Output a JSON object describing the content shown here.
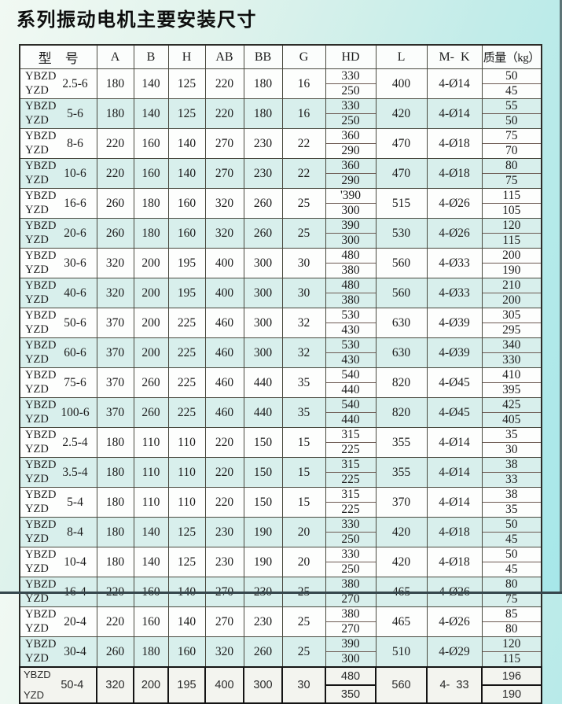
{
  "title": "系列振动电机主要安装尺寸",
  "style": {
    "background_top_left": "#f1f9f3",
    "background_bottom_right": "#a6e7e9",
    "row_tint": "#d8efec",
    "row_plain": "#fdfefd",
    "grid_line": "#49493f",
    "text": "#1b1b1b"
  },
  "table": {
    "headers": [
      "型　号",
      "A",
      "B",
      "H",
      "AB",
      "BB",
      "G",
      "HD",
      "L",
      "M-  K",
      "质量（kg）"
    ],
    "rows": [
      {
        "model_lines": [
          "YBZD",
          "YZD"
        ],
        "size": "2.5-6",
        "A": "180",
        "B": "140",
        "H": "125",
        "AB": "220",
        "BB": "180",
        "G": "16",
        "HD": [
          "330",
          "250"
        ],
        "L": "400",
        "MK": "4-Ø14",
        "kg": [
          "50",
          "45"
        ],
        "special": false
      },
      {
        "model_lines": [
          "YBZD",
          "YZD"
        ],
        "size": "5-6",
        "A": "180",
        "B": "140",
        "H": "125",
        "AB": "220",
        "BB": "180",
        "G": "16",
        "HD": [
          "330",
          "250"
        ],
        "L": "420",
        "MK": "4-Ø14",
        "kg": [
          "55",
          "50"
        ],
        "special": false
      },
      {
        "model_lines": [
          "YBZD",
          "YZD"
        ],
        "size": "8-6",
        "A": "220",
        "B": "160",
        "H": "140",
        "AB": "270",
        "BB": "230",
        "G": "22",
        "HD": [
          "360",
          "290"
        ],
        "L": "470",
        "MK": "4-Ø18",
        "kg": [
          "75",
          "70"
        ],
        "special": false
      },
      {
        "model_lines": [
          "YBZD",
          "YZD"
        ],
        "size": "10-6",
        "A": "220",
        "B": "160",
        "H": "140",
        "AB": "270",
        "BB": "230",
        "G": "22",
        "HD": [
          "360",
          "290"
        ],
        "L": "470",
        "MK": "4-Ø18",
        "kg": [
          "80",
          "75"
        ],
        "special": false
      },
      {
        "model_lines": [
          "YBZD",
          "YZD"
        ],
        "size": "16-6",
        "A": "260",
        "B": "180",
        "H": "160",
        "AB": "320",
        "BB": "260",
        "G": "25",
        "HD": [
          "'390",
          "300"
        ],
        "L": "515",
        "MK": "4-Ø26",
        "kg": [
          "115",
          "105"
        ],
        "special": false
      },
      {
        "model_lines": [
          "YBZD",
          "YZD"
        ],
        "size": "20-6",
        "A": "260",
        "B": "180",
        "H": "160",
        "AB": "320",
        "BB": "260",
        "G": "25",
        "HD": [
          "390",
          "300"
        ],
        "L": "530",
        "MK": "4-Ø26",
        "kg": [
          "120",
          "115"
        ],
        "special": false
      },
      {
        "model_lines": [
          "YBZD",
          "YZD"
        ],
        "size": "30-6",
        "A": "320",
        "B": "200",
        "H": "195",
        "AB": "400",
        "BB": "300",
        "G": "30",
        "HD": [
          "480",
          "380"
        ],
        "L": "560",
        "MK": "4-Ø33",
        "kg": [
          "200",
          "190"
        ],
        "special": false
      },
      {
        "model_lines": [
          "YBZD",
          "YZD"
        ],
        "size": "40-6",
        "A": "320",
        "B": "200",
        "H": "195",
        "AB": "400",
        "BB": "300",
        "G": "30",
        "HD": [
          "480",
          "380"
        ],
        "L": "560",
        "MK": "4-Ø33",
        "kg": [
          "210",
          "200"
        ],
        "special": false
      },
      {
        "model_lines": [
          "YBZD",
          "YZD"
        ],
        "size": "50-6",
        "A": "370",
        "B": "200",
        "H": "225",
        "AB": "460",
        "BB": "300",
        "G": "32",
        "HD": [
          "530",
          "430"
        ],
        "L": "630",
        "MK": "4-Ø39",
        "kg": [
          "305",
          "295"
        ],
        "special": false
      },
      {
        "model_lines": [
          "YBZD",
          "YZD"
        ],
        "size": "60-6",
        "A": "370",
        "B": "200",
        "H": "225",
        "AB": "460",
        "BB": "300",
        "G": "32",
        "HD": [
          "530",
          "430"
        ],
        "L": "630",
        "MK": "4-Ø39",
        "kg": [
          "340",
          "330"
        ],
        "special": false
      },
      {
        "model_lines": [
          "YBZD",
          "YZD"
        ],
        "size": "75-6",
        "A": "370",
        "B": "260",
        "H": "225",
        "AB": "460",
        "BB": "440",
        "G": "35",
        "HD": [
          "540",
          "440"
        ],
        "L": "820",
        "MK": "4-Ø45",
        "kg": [
          "410",
          "395"
        ],
        "special": false
      },
      {
        "model_lines": [
          "YBZD",
          "YZD"
        ],
        "size": "100-6",
        "A": "370",
        "B": "260",
        "H": "225",
        "AB": "460",
        "BB": "440",
        "G": "35",
        "HD": [
          "540",
          "440"
        ],
        "L": "820",
        "MK": "4-Ø45",
        "kg": [
          "425",
          "405"
        ],
        "special": false
      },
      {
        "model_lines": [
          "YBZD",
          "YZD"
        ],
        "size": "2.5-4",
        "A": "180",
        "B": "110",
        "H": "110",
        "AB": "220",
        "BB": "150",
        "G": "15",
        "HD": [
          "315",
          "225"
        ],
        "L": "355",
        "MK": "4-Ø14",
        "kg": [
          "35",
          "30"
        ],
        "special": false
      },
      {
        "model_lines": [
          "YBZD",
          "YZD"
        ],
        "size": "3.5-4",
        "A": "180",
        "B": "110",
        "H": "110",
        "AB": "220",
        "BB": "150",
        "G": "15",
        "HD": [
          "315",
          "225"
        ],
        "L": "355",
        "MK": "4-Ø14",
        "kg": [
          "38",
          "33"
        ],
        "special": false
      },
      {
        "model_lines": [
          "YBZD",
          "YZD"
        ],
        "size": "5-4",
        "A": "180",
        "B": "110",
        "H": "110",
        "AB": "220",
        "BB": "150",
        "G": "15",
        "HD": [
          "315",
          "225"
        ],
        "L": "370",
        "MK": "4-Ø14",
        "kg": [
          "38",
          "35"
        ],
        "special": false
      },
      {
        "model_lines": [
          "YBZD",
          "YZD"
        ],
        "size": "8-4",
        "A": "180",
        "B": "140",
        "H": "125",
        "AB": "230",
        "BB": "190",
        "G": "20",
        "HD": [
          "330",
          "250"
        ],
        "L": "420",
        "MK": "4-Ø18",
        "kg": [
          "50",
          "45"
        ],
        "special": false
      },
      {
        "model_lines": [
          "YBZD",
          "YZD"
        ],
        "size": "10-4",
        "A": "180",
        "B": "140",
        "H": "125",
        "AB": "230",
        "BB": "190",
        "G": "20",
        "HD": [
          "330",
          "250"
        ],
        "L": "420",
        "MK": "4-Ø18",
        "kg": [
          "50",
          "45"
        ],
        "special": false
      },
      {
        "model_lines": [
          "YBZD",
          "YZD"
        ],
        "size": "16-4",
        "A": "220",
        "B": "160",
        "H": "140",
        "AB": "270",
        "BB": "230",
        "G": "25",
        "HD": [
          "380",
          "270"
        ],
        "L": "465",
        "MK": "4-Ø26",
        "kg": [
          "80",
          "75"
        ],
        "special": false
      },
      {
        "model_lines": [
          "YBZD",
          "YZD"
        ],
        "size": "20-4",
        "A": "220",
        "B": "160",
        "H": "140",
        "AB": "270",
        "BB": "230",
        "G": "25",
        "HD": [
          "380",
          "270"
        ],
        "L": "465",
        "MK": "4-Ø26",
        "kg": [
          "85",
          "80"
        ],
        "special": false
      },
      {
        "model_lines": [
          "YBZD",
          "YZD"
        ],
        "size": "30-4",
        "A": "260",
        "B": "180",
        "H": "160",
        "AB": "320",
        "BB": "260",
        "G": "25",
        "HD": [
          "390",
          "300"
        ],
        "L": "510",
        "MK": "4-Ø29",
        "kg": [
          "120",
          "115"
        ],
        "special": false
      },
      {
        "model_lines": [
          "YBZD",
          "YZD"
        ],
        "size": "50-4",
        "A": "320",
        "B": "200",
        "H": "195",
        "AB": "400",
        "BB": "300",
        "G": "30",
        "HD": [
          "480",
          "350"
        ],
        "L": "560",
        "MK": "4-  33",
        "kg": [
          "196",
          "190"
        ],
        "special": true
      }
    ]
  }
}
